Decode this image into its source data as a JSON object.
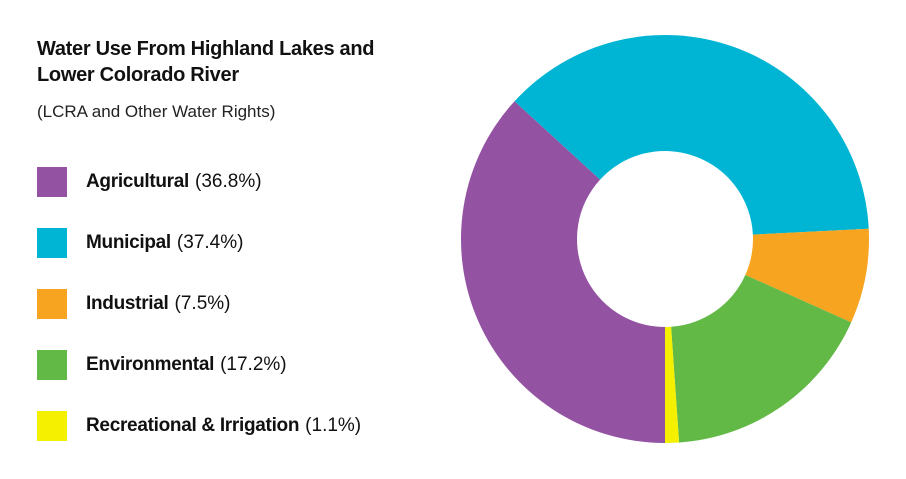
{
  "chart_data": {
    "type": "donut",
    "title": "Water Use From Highland Lakes and Lower Colorado River",
    "subtitle": "(LCRA and Other Water Rights)",
    "categories": [
      "Agricultural",
      "Municipal",
      "Industrial",
      "Environmental",
      "Recreational & Irrigation"
    ],
    "values": [
      36.8,
      37.4,
      7.5,
      17.2,
      1.1
    ],
    "value_labels": [
      "(36.8%)",
      "(37.4%)",
      "(7.5%)",
      "(17.2%)",
      "(1.1%)"
    ],
    "colors": [
      "#9353a2",
      "#00b5d4",
      "#f7a520",
      "#63b946",
      "#f5ef00"
    ]
  }
}
